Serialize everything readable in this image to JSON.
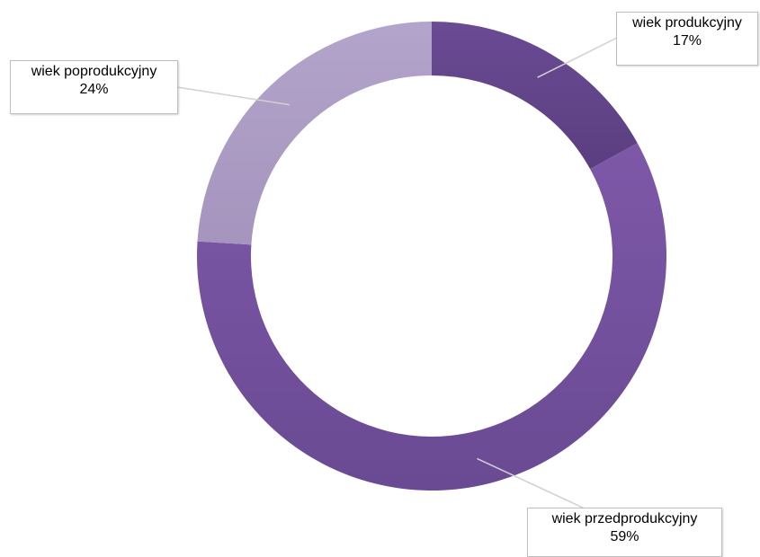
{
  "chart_data": {
    "type": "pie",
    "donut": true,
    "slices": [
      {
        "label": "wiek produkcyjny",
        "value": 17,
        "value_label": "17%",
        "color": "#5b3e80",
        "color_light": "#6a4b94"
      },
      {
        "label": "wiek przedprodukcyjny",
        "value": 59,
        "value_label": "59%",
        "color": "#6a4a93",
        "color_light": "#7d58a8"
      },
      {
        "label": "wiek poprodukcyjny",
        "value": 24,
        "value_label": "24%",
        "color": "#a595be",
        "color_light": "#b3a4cb"
      }
    ],
    "start_angle_deg": 0,
    "direction": "clockwise",
    "legend": "none",
    "data_labels": "callouts"
  }
}
